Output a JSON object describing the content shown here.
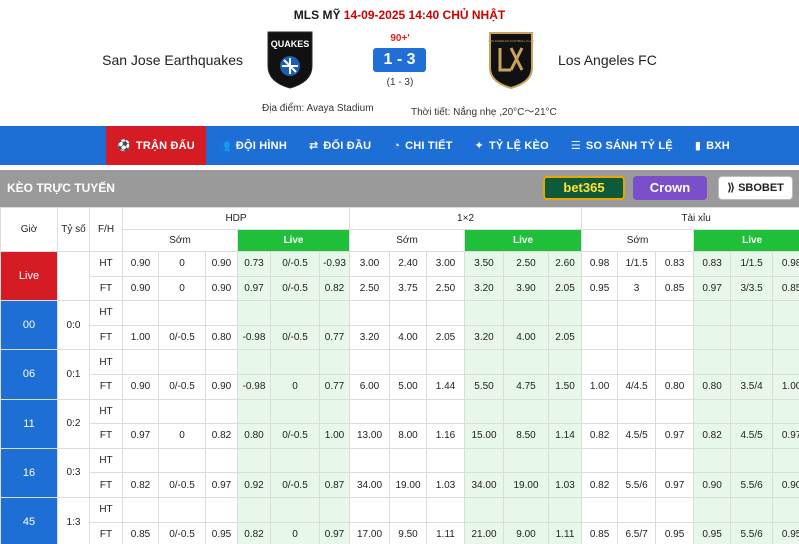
{
  "match": {
    "league": "MLS MỸ",
    "datetime": "14-09-2025 14:40 CHỦ NHẬT",
    "home_team": "San Jose Earthquakes",
    "away_team": "Los Angeles FC",
    "home_logo_text": "QUAKES",
    "away_logo_text": "LOS ANGELES FOOTBALL CLUB",
    "minute": "90+'",
    "score": "1 - 3",
    "half_time_score": "(1 - 3)",
    "venue": "Địa điểm: Avaya Stadium",
    "weather": "Thời tiết: Nắng nhẹ ,20°C～21°C"
  },
  "nav": {
    "items": [
      {
        "label": "TRẬN ĐẤU",
        "icon": "soccer-ball-icon",
        "active": true
      },
      {
        "label": "ĐỘI HÌNH",
        "icon": "team-icon",
        "active": false
      },
      {
        "label": "ĐỐI ĐẦU",
        "icon": "versus-icon",
        "active": false
      },
      {
        "label": "CHI TIẾT",
        "icon": "chat-icon",
        "active": false
      },
      {
        "label": "TỶ LỆ KÈO",
        "icon": "tag-icon",
        "active": false
      },
      {
        "label": "SO SÁNH TỶ LỆ",
        "icon": "list-icon",
        "active": false
      },
      {
        "label": "BXH",
        "icon": "bar-chart-icon",
        "active": false
      }
    ]
  },
  "odds": {
    "title": "KÈO TRỰC TUYẾN",
    "bookmakers": {
      "bet365": "bet365",
      "crown": "Crown",
      "sbobet": "SBOBET"
    },
    "columns": {
      "time": "Giờ",
      "score": "Tỷ số",
      "fh": "F/H",
      "hdp": "HDP",
      "x12": "1×2",
      "ou": "Tài xỉu",
      "early": "Sớm",
      "live": "Live"
    },
    "rows": [
      {
        "time": "Live",
        "score": "",
        "ht": [
          "0.90",
          "0",
          "0.90",
          "0.73",
          "0/-0.5",
          "-0.93",
          "3.00",
          "2.40",
          "3.00",
          "3.50",
          "2.50",
          "2.60",
          "0.98",
          "1/1.5",
          "0.83",
          "0.83",
          "1/1.5",
          "0.98"
        ],
        "ft": [
          "0.90",
          "0",
          "0.90",
          "0.97",
          "0/-0.5",
          "0.82",
          "2.50",
          "3.75",
          "2.50",
          "3.20",
          "3.90",
          "2.05",
          "0.95",
          "3",
          "0.85",
          "0.97",
          "3/3.5",
          "0.85"
        ]
      },
      {
        "time": "00",
        "score": "0:0",
        "ht": [
          "",
          "",
          "",
          "",
          "",
          "",
          "",
          "",
          "",
          "",
          "",
          "",
          "",
          "",
          "",
          "",
          "",
          ""
        ],
        "ft": [
          "1.00",
          "0/-0.5",
          "0.80",
          "-0.98",
          "0/-0.5",
          "0.77",
          "3.20",
          "4.00",
          "2.05",
          "3.20",
          "4.00",
          "2.05",
          "",
          "",
          "",
          "",
          "",
          ""
        ]
      },
      {
        "time": "06",
        "score": "0:1",
        "ht": [
          "",
          "",
          "",
          "",
          "",
          "",
          "",
          "",
          "",
          "",
          "",
          "",
          "",
          "",
          "",
          "",
          "",
          ""
        ],
        "ft": [
          "0.90",
          "0/-0.5",
          "0.90",
          "-0.98",
          "0",
          "0.77",
          "6.00",
          "5.00",
          "1.44",
          "5.50",
          "4.75",
          "1.50",
          "1.00",
          "4/4.5",
          "0.80",
          "0.80",
          "3.5/4",
          "1.00"
        ]
      },
      {
        "time": "11",
        "score": "0:2",
        "ht": [
          "",
          "",
          "",
          "",
          "",
          "",
          "",
          "",
          "",
          "",
          "",
          "",
          "",
          "",
          "",
          "",
          "",
          ""
        ],
        "ft": [
          "0.97",
          "0",
          "0.82",
          "0.80",
          "0/-0.5",
          "1.00",
          "13.00",
          "8.00",
          "1.16",
          "15.00",
          "8.50",
          "1.14",
          "0.82",
          "4.5/5",
          "0.97",
          "0.82",
          "4.5/5",
          "0.97"
        ]
      },
      {
        "time": "16",
        "score": "0:3",
        "ht": [
          "",
          "",
          "",
          "",
          "",
          "",
          "",
          "",
          "",
          "",
          "",
          "",
          "",
          "",
          "",
          "",
          "",
          ""
        ],
        "ft": [
          "0.82",
          "0/-0.5",
          "0.97",
          "0.92",
          "0/-0.5",
          "0.87",
          "34.00",
          "19.00",
          "1.03",
          "34.00",
          "19.00",
          "1.03",
          "0.82",
          "5.5/6",
          "0.97",
          "0.90",
          "5.5/6",
          "0.90"
        ]
      },
      {
        "time": "45",
        "score": "1:3",
        "ht": [
          "",
          "",
          "",
          "",
          "",
          "",
          "",
          "",
          "",
          "",
          "",
          "",
          "",
          "",
          "",
          "",
          "",
          ""
        ],
        "ft": [
          "0.85",
          "0/-0.5",
          "0.95",
          "0.82",
          "0",
          "0.97",
          "17.00",
          "9.50",
          "1.11",
          "21.00",
          "9.00",
          "1.11",
          "0.85",
          "6.5/7",
          "0.95",
          "0.95",
          "5.5/6",
          "0.95"
        ]
      }
    ]
  },
  "colors": {
    "nav_blue": "#1d6fd5",
    "active_red": "#d51c24",
    "live_green": "#1fbf3a",
    "live_bg": "#e7f7ea",
    "date_red": "#d10000"
  }
}
